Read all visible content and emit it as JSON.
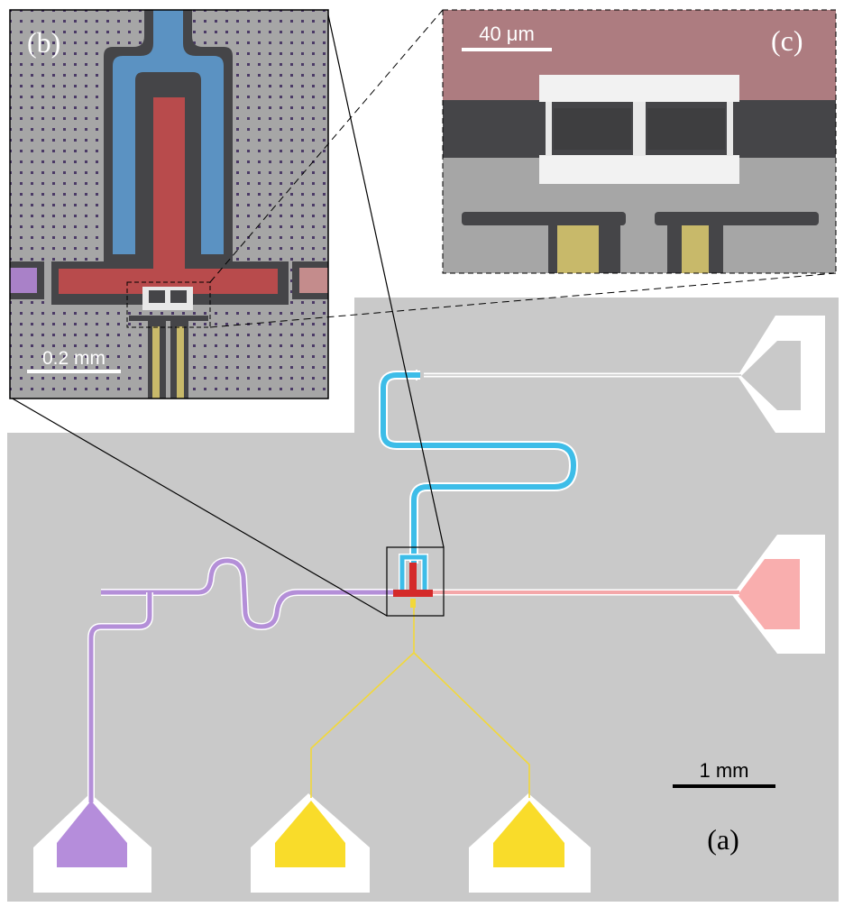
{
  "figure": {
    "panel_a": {
      "label": "(a)",
      "scale_bar_text": "1 mm"
    },
    "panel_b": {
      "label": "(b)",
      "scale_bar_text": "0.2 mm"
    },
    "panel_c": {
      "label": "(c)",
      "scale_bar_text": "40 μm"
    }
  },
  "colors": {
    "chip_background": "#c9c9c9",
    "feedline_blue": "#3dbde8",
    "flux_line_red": "#f4a7a9",
    "drive_line_purple": "#b48fd8",
    "bias_line_yellow": "#f2d83a",
    "pad_yellow": "#f9dc2a",
    "pad_purple": "#b58ddb",
    "pad_pink": "#f9aeae",
    "electrode_red": "#b84b4c",
    "electrode_blue": "#5b92c2",
    "micrograph_gray": "#a6a6a6",
    "dark_gap": "#454548",
    "membrane_mauve": "#ad7c80",
    "electrode_gold": "#c8b96a"
  }
}
